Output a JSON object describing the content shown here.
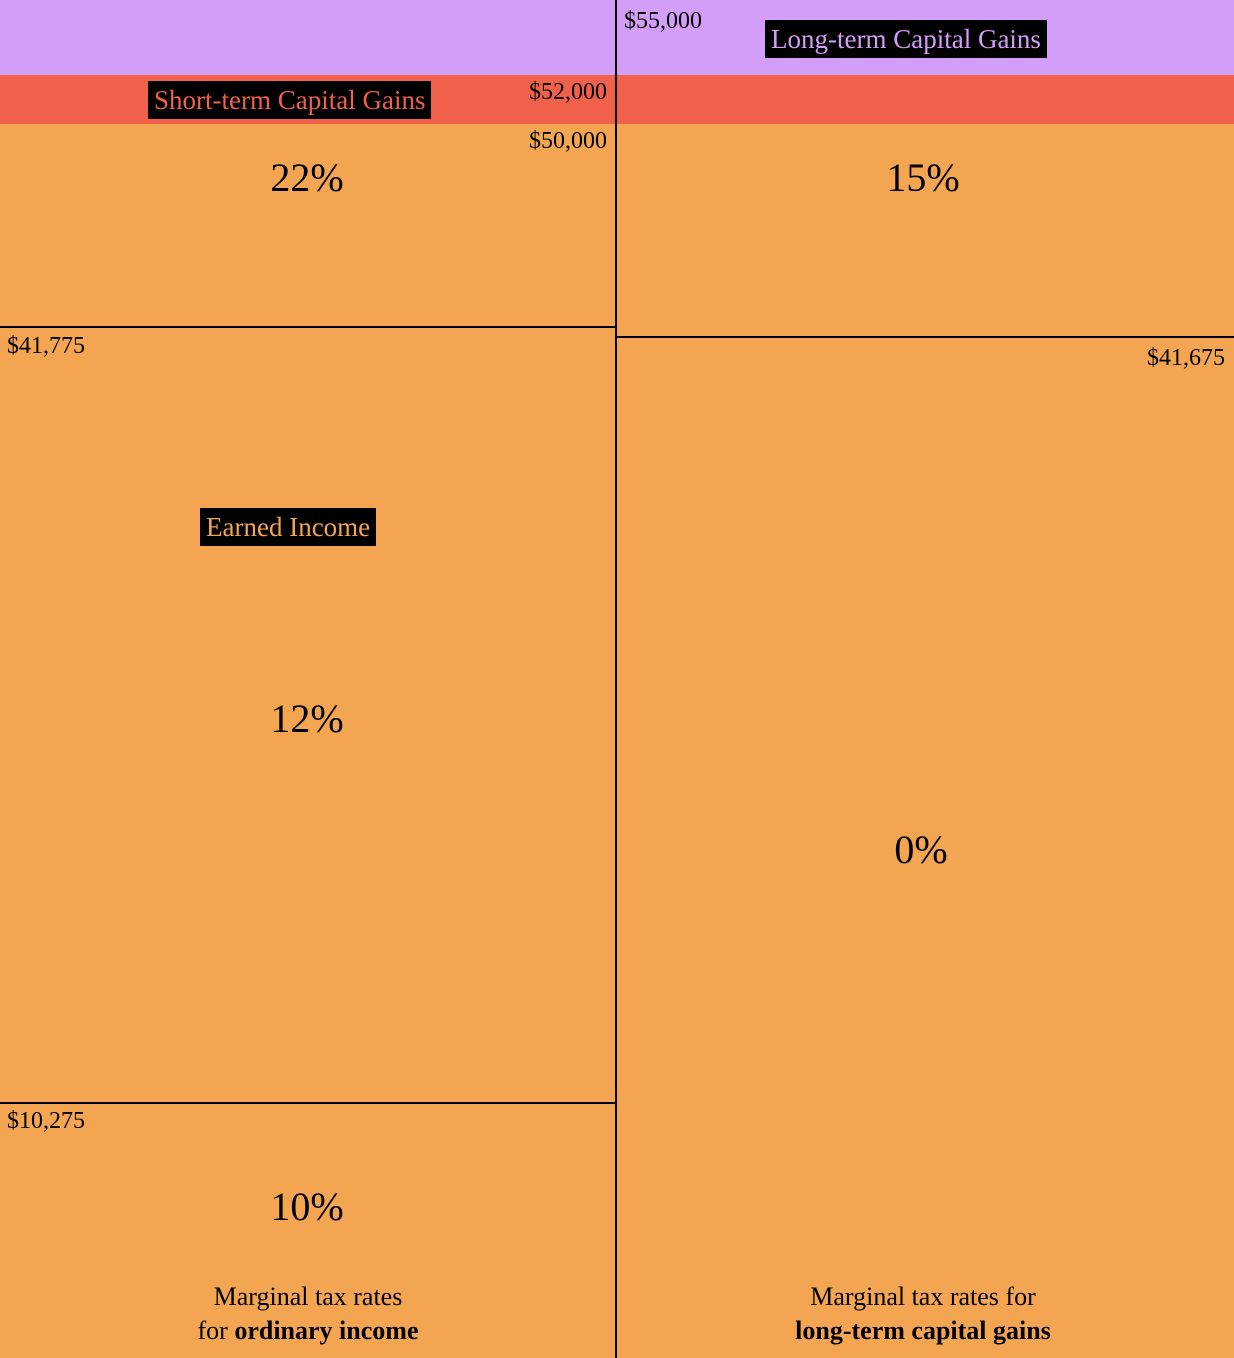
{
  "labels": {
    "long_term": "Long-term Capital Gains",
    "short_term": "Short-term Capital Gains",
    "earned": "Earned Income"
  },
  "amounts": {
    "long_term_top": "$55,000",
    "short_term_top": "$52,000",
    "earned_top": "$50,000"
  },
  "ordinary_income": {
    "rates": [
      "10%",
      "12%",
      "22%"
    ],
    "thresholds": [
      "$10,275",
      "$41,775"
    ],
    "caption": {
      "line1": "Marginal tax rates",
      "line2_prefix": "for",
      "line2_bold": "ordinary income"
    }
  },
  "capital_gains": {
    "rates": [
      "0%",
      "15%"
    ],
    "thresholds": [
      "$41,675"
    ],
    "caption": {
      "line1": "Marginal tax rates for",
      "line2_bold": "long-term capital gains"
    }
  }
}
